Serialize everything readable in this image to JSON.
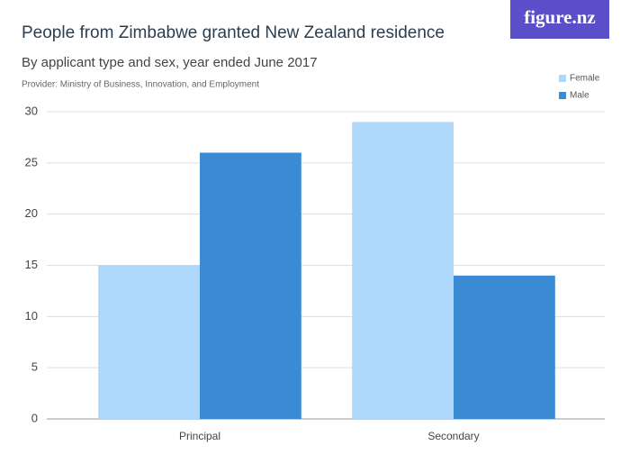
{
  "chart_data": {
    "type": "bar",
    "title": "People from Zimbabwe granted New Zealand residence",
    "subtitle": "By applicant type and sex, year ended June 2017",
    "source": "Provider: Ministry of Business, Innovation, and Employment",
    "logo": "figure.nz",
    "categories": [
      "Principal",
      "Secondary"
    ],
    "series": [
      {
        "name": "Female",
        "color": "#aed8fb",
        "values": [
          15,
          29
        ]
      },
      {
        "name": "Male",
        "color": "#3a8ad4",
        "values": [
          26,
          14
        ]
      }
    ],
    "ylim": [
      0,
      30
    ],
    "yticks": [
      0,
      5,
      10,
      15,
      20,
      25,
      30
    ],
    "grid": true,
    "legend": "top-right"
  }
}
